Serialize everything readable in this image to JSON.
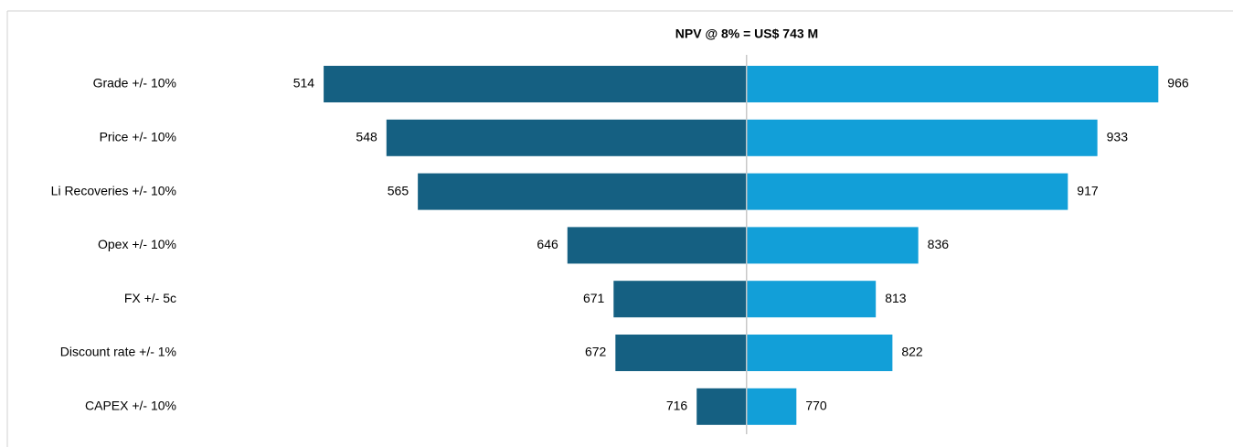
{
  "chart_data": {
    "type": "tornado",
    "title": "NPV @ 8% = US$ 743 M",
    "base": 743,
    "categories": [
      "Grade +/- 10%",
      "Price +/- 10%",
      "Li Recoveries +/- 10%",
      "Opex +/- 10%",
      "FX +/- 5c",
      "Discount rate +/- 1%",
      "CAPEX +/- 10%"
    ],
    "series": [
      {
        "color": "#156082",
        "values": [
          514,
          548,
          565,
          646,
          671,
          672,
          716
        ]
      },
      {
        "color": "#129fd8",
        "values": [
          966,
          933,
          917,
          836,
          813,
          822,
          770
        ]
      }
    ],
    "xlim": [
      460,
      1000
    ]
  }
}
